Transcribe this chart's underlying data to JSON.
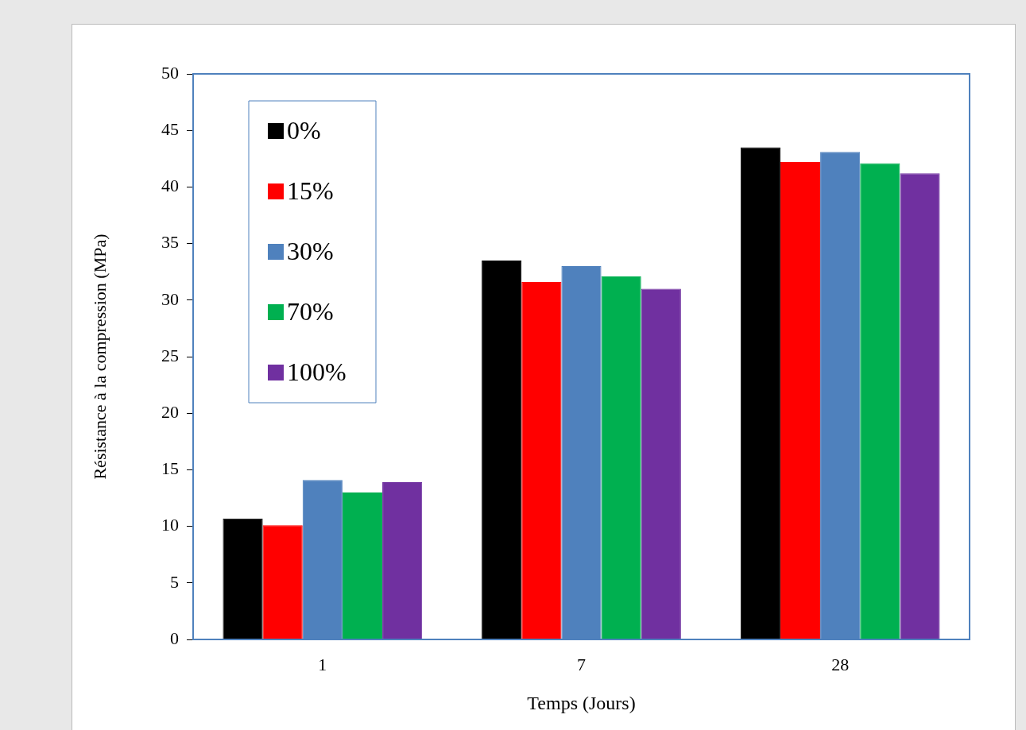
{
  "chart_data": {
    "type": "bar",
    "xlabel": "Temps (Jours)",
    "ylabel": "Résistance à la compression (MPa)",
    "categories": [
      "1",
      "7",
      "28"
    ],
    "series": [
      {
        "name": "0%",
        "color": "#000000",
        "values": [
          10.7,
          33.5,
          43.5
        ]
      },
      {
        "name": "15%",
        "color": "#ff0000",
        "values": [
          10.1,
          31.6,
          42.2
        ]
      },
      {
        "name": "30%",
        "color": "#4f81bd",
        "values": [
          14.1,
          33.0,
          43.1
        ]
      },
      {
        "name": "70%",
        "color": "#00b050",
        "values": [
          13.0,
          32.1,
          42.1
        ]
      },
      {
        "name": "100%",
        "color": "#7030a0",
        "values": [
          13.9,
          31.0,
          41.2
        ]
      }
    ],
    "ylim": [
      0,
      50
    ],
    "yticks": [
      0,
      5,
      10,
      15,
      20,
      25,
      30,
      35,
      40,
      45,
      50
    ],
    "grid": false,
    "legend": "top left"
  }
}
